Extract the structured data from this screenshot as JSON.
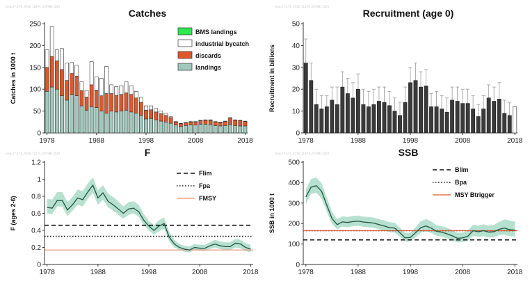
{
  "chart_data": [
    {
      "id": "catches",
      "type": "bar",
      "title": "Catches",
      "ylabel": "Catches in 1000 t",
      "ylim": [
        0,
        250
      ],
      "yticks": [
        0,
        50,
        100,
        150,
        200,
        250
      ],
      "xlim": [
        1977.5,
        2018.5
      ],
      "xticks": [
        1978,
        1988,
        1998,
        2008,
        2018
      ],
      "stacked": true,
      "legend": "top-right",
      "x": [
        1978,
        1979,
        1980,
        1981,
        1982,
        1983,
        1984,
        1985,
        1986,
        1987,
        1988,
        1989,
        1990,
        1991,
        1992,
        1993,
        1994,
        1995,
        1996,
        1997,
        1998,
        1999,
        2000,
        2001,
        2002,
        2003,
        2004,
        2005,
        2006,
        2007,
        2008,
        2009,
        2010,
        2011,
        2012,
        2013,
        2014,
        2015,
        2016,
        2017,
        2018
      ],
      "series": [
        {
          "name": "landings",
          "color": "#9fc9bc",
          "values": [
            95,
            105,
            100,
            85,
            75,
            88,
            85,
            62,
            52,
            60,
            58,
            50,
            45,
            50,
            48,
            50,
            52,
            48,
            45,
            40,
            32,
            33,
            30,
            27,
            25,
            22,
            18,
            15,
            17,
            18,
            18,
            20,
            20,
            19,
            17,
            16,
            17,
            19,
            17,
            16,
            16
          ]
        },
        {
          "name": "discards",
          "color": "#e0572a",
          "values": [
            55,
            70,
            65,
            60,
            45,
            48,
            45,
            35,
            30,
            50,
            40,
            35,
            45,
            40,
            38,
            38,
            40,
            40,
            35,
            30,
            20,
            20,
            18,
            17,
            15,
            13,
            7,
            6,
            6,
            7,
            7,
            8,
            9,
            10,
            8,
            8,
            9,
            15,
            12,
            12,
            10
          ]
        },
        {
          "name": "industrial bycatch",
          "color": "#ffffff",
          "values": [
            40,
            68,
            25,
            48,
            40,
            25,
            25,
            20,
            15,
            53,
            30,
            40,
            62,
            20,
            20,
            20,
            25,
            20,
            15,
            12,
            10,
            9,
            8,
            6,
            5,
            2,
            1,
            1,
            1,
            1,
            1,
            1,
            1,
            1,
            1,
            1,
            1,
            1,
            1,
            1,
            1
          ]
        },
        {
          "name": "BMS landings",
          "color": "#2ee84e",
          "values": [
            0,
            0,
            0,
            0,
            0,
            0,
            0,
            0,
            0,
            0,
            0,
            0,
            0,
            0,
            0,
            0,
            0,
            0,
            0,
            0,
            0,
            0,
            0,
            0,
            0,
            0,
            0,
            0,
            0,
            0,
            0,
            0,
            0,
            0,
            0,
            0,
            0,
            0,
            0,
            0,
            0
          ]
        }
      ]
    },
    {
      "id": "recruitment",
      "type": "bar",
      "title": "Recruitment (age 0)",
      "ylabel": "Recruitment in billions",
      "ylim": [
        0,
        50
      ],
      "yticks": [
        0,
        10,
        20,
        30,
        40,
        50
      ],
      "xlim": [
        1977.5,
        2018.5
      ],
      "xticks": [
        1978,
        1988,
        1998,
        2008,
        2018
      ],
      "x": [
        1978,
        1979,
        1980,
        1981,
        1982,
        1983,
        1984,
        1985,
        1986,
        1987,
        1988,
        1989,
        1990,
        1991,
        1992,
        1993,
        1994,
        1995,
        1996,
        1997,
        1998,
        1999,
        2000,
        2001,
        2002,
        2003,
        2004,
        2005,
        2006,
        2007,
        2008,
        2009,
        2010,
        2011,
        2012,
        2013,
        2014,
        2015,
        2016,
        2017,
        2018
      ],
      "values": [
        32,
        24,
        13,
        11,
        12,
        15,
        13,
        21,
        18,
        16,
        20,
        13,
        12,
        13,
        14.5,
        14,
        12.5,
        10,
        8,
        14,
        23,
        24,
        21,
        21.5,
        12,
        12,
        11,
        9.5,
        15,
        14.5,
        13.5,
        13.5,
        11,
        7.5,
        11,
        16,
        14.5,
        15.5,
        9,
        8,
        12
      ],
      "upper": [
        43,
        32,
        20,
        17,
        17,
        21,
        21,
        28,
        25,
        23,
        27,
        20,
        19,
        20,
        21,
        21,
        19,
        16,
        14,
        21,
        30,
        32,
        28,
        29,
        18,
        19,
        17,
        16,
        21,
        21,
        20,
        20,
        17,
        13,
        17,
        22,
        21,
        23,
        15,
        14,
        16
      ],
      "last_bar_hollow": true
    },
    {
      "id": "F",
      "type": "line",
      "title": "F",
      "ylabel": "F (ages 2-6)",
      "ylim": [
        0,
        1.2
      ],
      "yticks": [
        0,
        0.2,
        0.4,
        0.6,
        0.8,
        1.0,
        1.2
      ],
      "ytick_labels": [
        "0",
        "0.2",
        "0.4",
        "0.6",
        "0.8",
        "1",
        "1.2"
      ],
      "xlim": [
        1977.5,
        2018.5
      ],
      "xticks": [
        1978,
        1988,
        1998,
        2008,
        2018
      ],
      "legend": "top-right",
      "x": [
        1978,
        1979,
        1980,
        1981,
        1982,
        1983,
        1984,
        1985,
        1986,
        1987,
        1988,
        1989,
        1990,
        1991,
        1992,
        1993,
        1994,
        1995,
        1996,
        1997,
        1998,
        1999,
        2000,
        2001,
        2002,
        2003,
        2004,
        2005,
        2006,
        2007,
        2008,
        2009,
        2010,
        2011,
        2012,
        2013,
        2014,
        2015,
        2016,
        2017,
        2018
      ],
      "estimate": [
        0.67,
        0.66,
        0.75,
        0.75,
        0.64,
        0.7,
        0.78,
        0.76,
        0.85,
        0.93,
        0.78,
        0.84,
        0.74,
        0.7,
        0.65,
        0.6,
        0.65,
        0.66,
        0.62,
        0.52,
        0.45,
        0.4,
        0.45,
        0.48,
        0.32,
        0.24,
        0.2,
        0.18,
        0.17,
        0.2,
        0.19,
        0.19,
        0.22,
        0.24,
        0.22,
        0.21,
        0.21,
        0.25,
        0.24,
        0.2,
        0.18
      ],
      "lower": [
        0.6,
        0.59,
        0.68,
        0.68,
        0.57,
        0.63,
        0.7,
        0.68,
        0.77,
        0.84,
        0.7,
        0.76,
        0.67,
        0.63,
        0.58,
        0.54,
        0.58,
        0.6,
        0.56,
        0.46,
        0.4,
        0.35,
        0.39,
        0.42,
        0.27,
        0.2,
        0.17,
        0.15,
        0.14,
        0.17,
        0.16,
        0.16,
        0.18,
        0.2,
        0.18,
        0.17,
        0.17,
        0.2,
        0.19,
        0.16,
        0.14
      ],
      "upper": [
        0.77,
        0.76,
        0.85,
        0.85,
        0.73,
        0.79,
        0.88,
        0.86,
        0.95,
        1.02,
        0.87,
        0.93,
        0.83,
        0.79,
        0.74,
        0.68,
        0.73,
        0.74,
        0.7,
        0.59,
        0.51,
        0.46,
        0.52,
        0.55,
        0.38,
        0.29,
        0.24,
        0.22,
        0.21,
        0.24,
        0.23,
        0.23,
        0.26,
        0.29,
        0.27,
        0.26,
        0.26,
        0.3,
        0.29,
        0.25,
        0.23
      ],
      "reference_lines": [
        {
          "name": "Flim",
          "value": 0.46,
          "style": "dashed",
          "color": "#111111"
        },
        {
          "name": "Fpa",
          "value": 0.33,
          "style": "dotted",
          "color": "#111111"
        },
        {
          "name": "FMSY",
          "value": 0.17,
          "style": "solid",
          "color": "#f08a70"
        }
      ]
    },
    {
      "id": "SSB",
      "type": "line",
      "title": "SSB",
      "ylabel": "SSB in 1000 t",
      "ylim": [
        0,
        500
      ],
      "yticks": [
        0,
        100,
        200,
        300,
        400,
        500
      ],
      "xlim": [
        1977.5,
        2018.5
      ],
      "xticks": [
        1978,
        1988,
        1998,
        2008,
        2018
      ],
      "legend": "top-right",
      "x": [
        1978,
        1979,
        1980,
        1981,
        1982,
        1983,
        1984,
        1985,
        1986,
        1987,
        1988,
        1989,
        1990,
        1991,
        1992,
        1993,
        1994,
        1995,
        1996,
        1997,
        1998,
        1999,
        2000,
        2001,
        2002,
        2003,
        2004,
        2005,
        2006,
        2007,
        2008,
        2009,
        2010,
        2011,
        2012,
        2013,
        2014,
        2015,
        2016,
        2017,
        2018
      ],
      "estimate": [
        330,
        378,
        385,
        358,
        290,
        225,
        195,
        208,
        205,
        210,
        212,
        207,
        205,
        202,
        195,
        188,
        180,
        178,
        155,
        130,
        132,
        155,
        180,
        188,
        178,
        162,
        158,
        150,
        140,
        128,
        130,
        138,
        165,
        160,
        165,
        158,
        160,
        172,
        178,
        170,
        168
      ],
      "lower": [
        295,
        345,
        350,
        322,
        258,
        198,
        172,
        185,
        182,
        187,
        189,
        184,
        182,
        179,
        172,
        165,
        158,
        156,
        135,
        112,
        113,
        133,
        155,
        162,
        154,
        140,
        136,
        128,
        119,
        108,
        110,
        116,
        140,
        135,
        138,
        132,
        133,
        143,
        146,
        138,
        135
      ],
      "upper": [
        368,
        418,
        425,
        398,
        328,
        256,
        222,
        235,
        232,
        237,
        239,
        234,
        232,
        229,
        222,
        215,
        206,
        204,
        180,
        152,
        155,
        182,
        212,
        222,
        210,
        192,
        188,
        180,
        168,
        155,
        156,
        165,
        195,
        190,
        196,
        190,
        194,
        208,
        220,
        215,
        210
      ],
      "reference_lines": [
        {
          "name": "Blim",
          "value": 120,
          "style": "dashed",
          "color": "#111111"
        },
        {
          "name": "Bpa",
          "value": 165,
          "style": "dotted",
          "color": "#111111"
        },
        {
          "name": "MSY Btrigger",
          "value": 165,
          "style": "solid",
          "color": "#e0572a"
        }
      ]
    }
  ]
}
